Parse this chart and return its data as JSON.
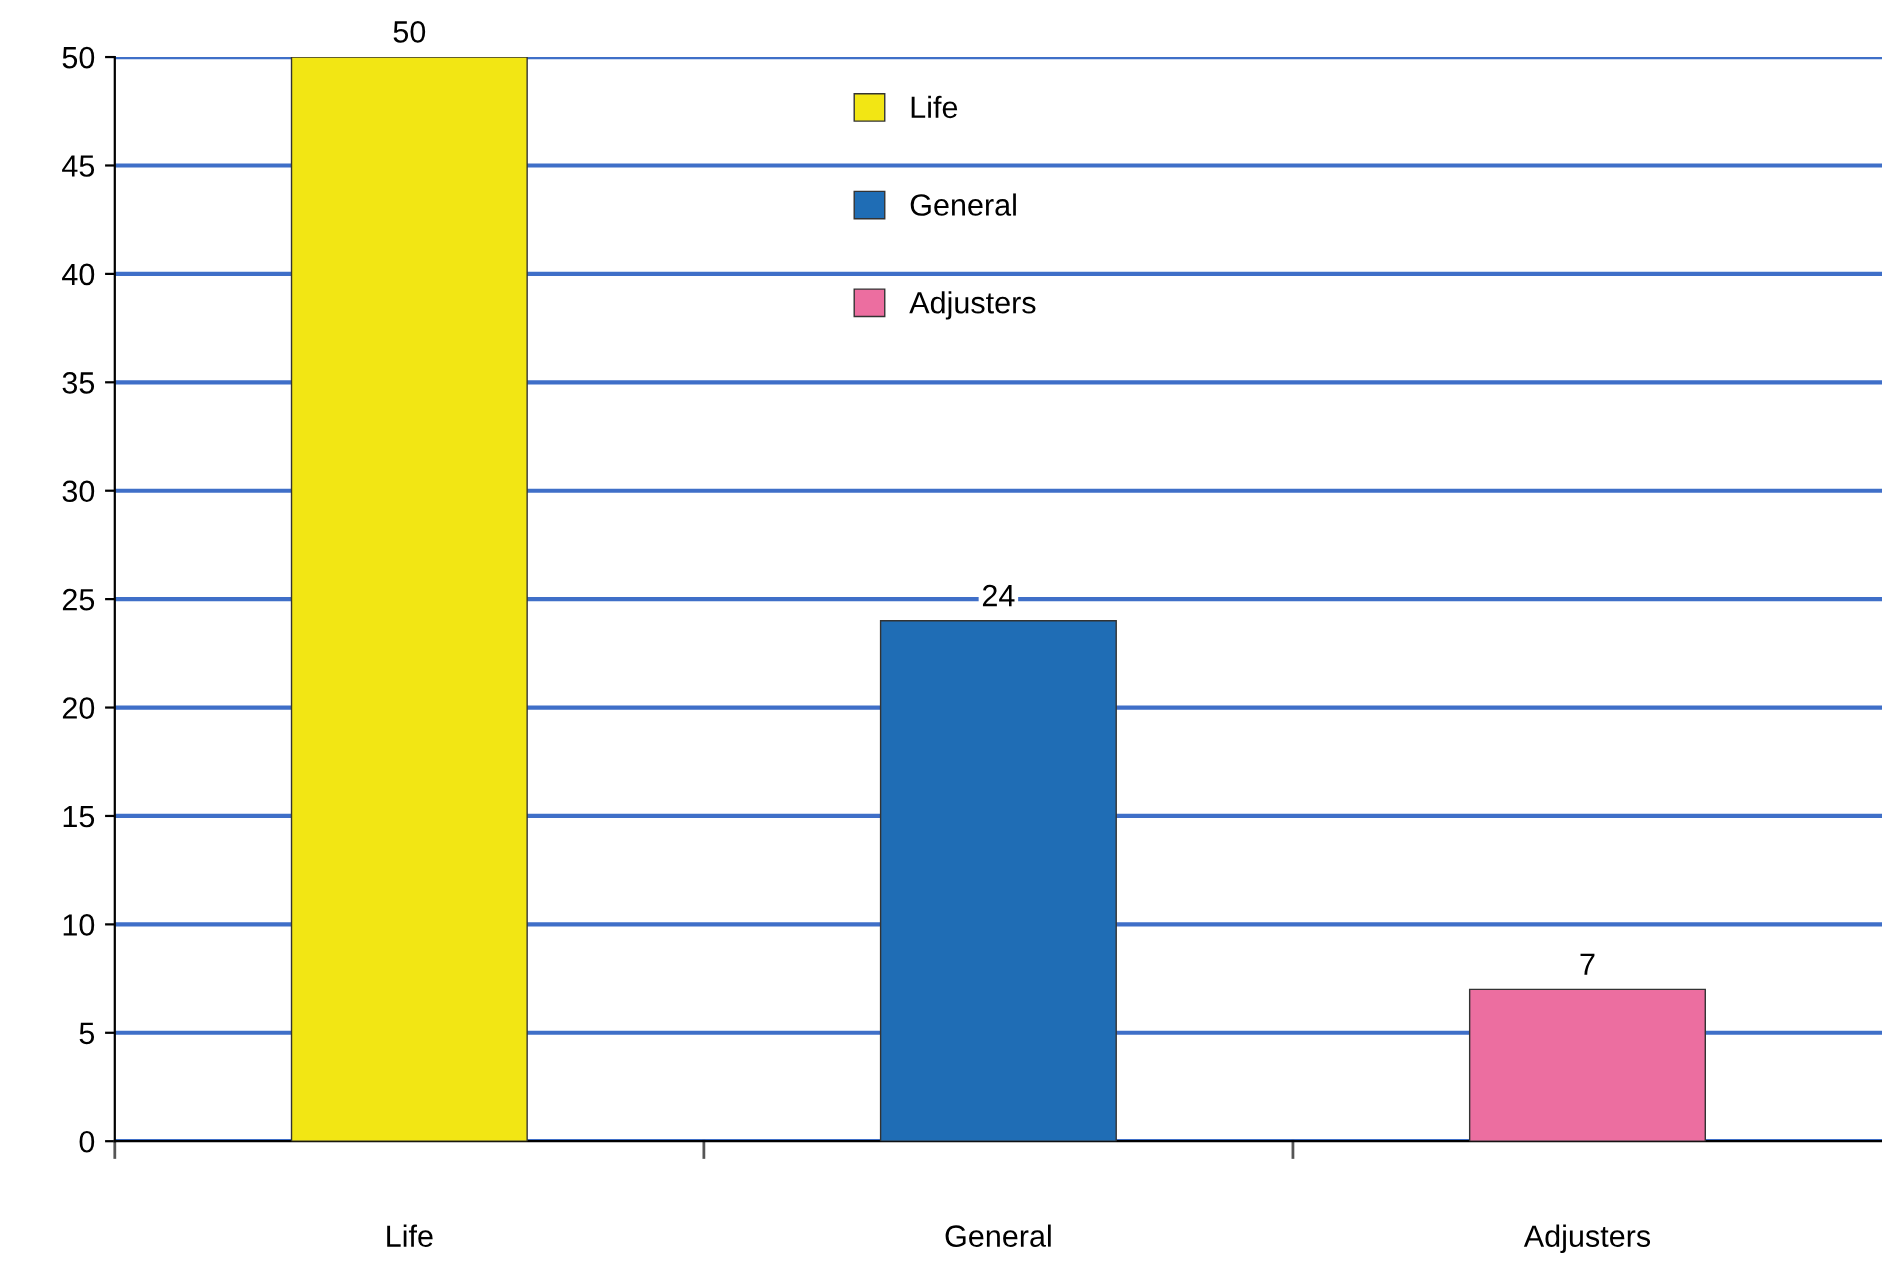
{
  "chart_data": {
    "type": "bar",
    "categories": [
      "Life",
      "General",
      "Adjusters"
    ],
    "series": [
      {
        "name": "Life",
        "color": "#f2e614",
        "values": [
          50,
          null,
          null
        ]
      },
      {
        "name": "General",
        "color": "#1f6db5",
        "values": [
          null,
          24,
          null
        ]
      },
      {
        "name": "Adjusters",
        "color": "#ec6ea0",
        "values": [
          null,
          null,
          7
        ]
      }
    ],
    "ylim": [
      0,
      50
    ],
    "yticks": [
      0,
      5,
      10,
      15,
      20,
      25,
      30,
      35,
      40,
      45,
      50
    ],
    "grid": "y",
    "legend": "top",
    "data_labels": true
  }
}
